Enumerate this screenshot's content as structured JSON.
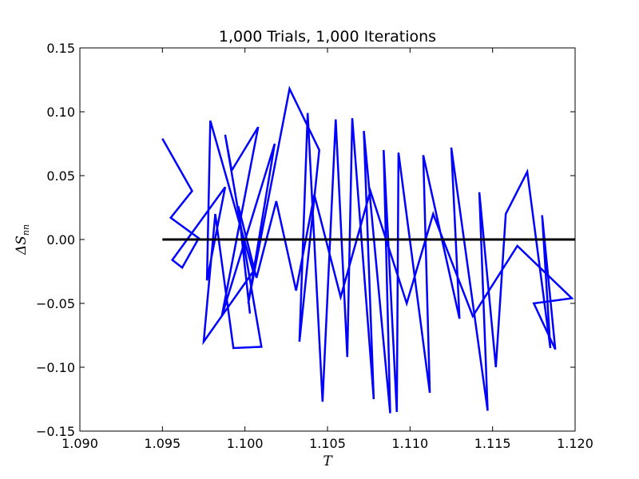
{
  "chart_data": {
    "type": "line",
    "title": "1,000 Trials, 1,000 Iterations",
    "xlabel": "T",
    "ylabel_main": "ΔS",
    "ylabel_sub": "nn",
    "xlim": [
      1.09,
      1.12
    ],
    "ylim": [
      -0.15,
      0.15
    ],
    "xticks": [
      1.09,
      1.095,
      1.1,
      1.105,
      1.11,
      1.115,
      1.12
    ],
    "yticks": [
      -0.15,
      -0.1,
      -0.05,
      0.0,
      0.05,
      0.1,
      0.15
    ],
    "xtick_labels": [
      "1.090",
      "1.095",
      "1.100",
      "1.105",
      "1.110",
      "1.115",
      "1.120"
    ],
    "ytick_labels": [
      "−0.15",
      "−0.10",
      "−0.05",
      "0.00",
      "0.05",
      "0.10",
      "0.15"
    ],
    "grid": false,
    "series": [
      {
        "color": "#0000ff",
        "points": [
          [
            1.095,
            0.079
          ],
          [
            1.0968,
            0.038
          ],
          [
            1.0955,
            0.017
          ],
          [
            1.0972,
            0.001
          ],
          [
            1.0962,
            -0.022
          ],
          [
            1.0956,
            -0.016
          ],
          [
            1.0988,
            0.041
          ],
          [
            1.0977,
            -0.032
          ],
          [
            1.0979,
            0.093
          ],
          [
            1.1005,
            -0.025
          ],
          [
            1.0975,
            -0.08
          ],
          [
            1.0982,
            0.02
          ],
          [
            1.0993,
            -0.085
          ],
          [
            1.101,
            -0.084
          ],
          [
            1.0988,
            0.082
          ],
          [
            1.0992,
            0.054
          ],
          [
            1.1008,
            0.088
          ],
          [
            1.0986,
            -0.06
          ],
          [
            1.1018,
            0.075
          ],
          [
            1.1002,
            -0.05
          ],
          [
            1.1027,
            0.118
          ],
          [
            1.1045,
            0.07
          ],
          [
            1.1033,
            -0.08
          ],
          [
            1.1038,
            0.099
          ],
          [
            1.1047,
            -0.127
          ],
          [
            1.1055,
            0.094
          ],
          [
            1.1062,
            -0.092
          ],
          [
            1.1065,
            0.095
          ],
          [
            1.1078,
            -0.125
          ],
          [
            1.1072,
            0.085
          ],
          [
            1.1088,
            -0.136
          ],
          [
            1.1084,
            0.07
          ],
          [
            1.1092,
            -0.135
          ],
          [
            1.1093,
            0.068
          ],
          [
            1.1112,
            -0.12
          ],
          [
            1.1108,
            0.066
          ],
          [
            1.113,
            -0.062
          ],
          [
            1.1125,
            0.072
          ],
          [
            1.1147,
            -0.134
          ],
          [
            1.1142,
            0.037
          ],
          [
            1.1152,
            -0.1
          ],
          [
            1.1158,
            0.02
          ],
          [
            1.1171,
            0.053
          ],
          [
            1.1185,
            -0.085
          ],
          [
            1.118,
            0.019
          ],
          [
            1.1188,
            -0.086
          ],
          [
            1.1175,
            -0.05
          ],
          [
            1.1198,
            -0.046
          ],
          [
            1.1165,
            -0.005
          ],
          [
            1.1138,
            -0.06
          ],
          [
            1.1114,
            0.02
          ],
          [
            1.1098,
            -0.05
          ],
          [
            1.1076,
            0.038
          ],
          [
            1.1058,
            -0.045
          ],
          [
            1.1042,
            0.035
          ],
          [
            1.1031,
            -0.04
          ],
          [
            1.1019,
            0.03
          ],
          [
            1.1007,
            -0.03
          ],
          [
            1.0996,
            0.026
          ],
          [
            1.1003,
            -0.058
          ]
        ]
      },
      {
        "color": "#000000",
        "points": [
          [
            1.095,
            0.0
          ],
          [
            1.12,
            0.0
          ]
        ]
      }
    ]
  }
}
